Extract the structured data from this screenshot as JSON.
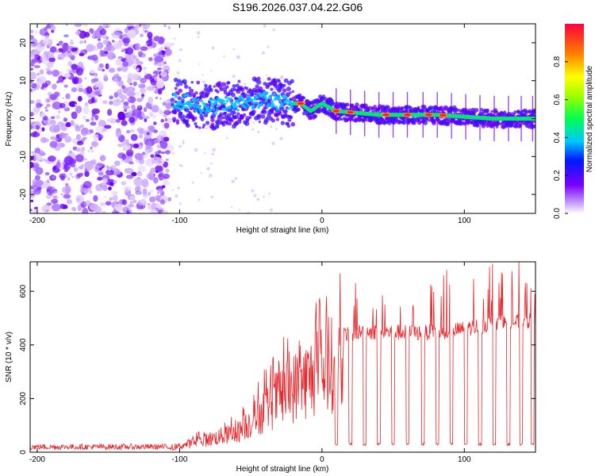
{
  "title": "S196.2026.037.04.22.G06",
  "chart_data": [
    {
      "type": "heatmap",
      "name": "spectrogram",
      "xlabel": "Height of straight line (km)",
      "ylabel": "Frequency (Hz)",
      "xlim": [
        -205,
        150
      ],
      "ylim": [
        -25,
        25
      ],
      "x_ticks": [
        -200,
        -100,
        0,
        100
      ],
      "y_ticks": [
        -20,
        -10,
        0,
        10,
        20
      ],
      "x_tick_labels": [
        "-200",
        "-100",
        "0",
        "100"
      ],
      "y_tick_labels": [
        "-20",
        "-10",
        "0",
        "10",
        "20"
      ],
      "colorbar": {
        "label": "Normalized spectral amplitude",
        "range": [
          0,
          1
        ],
        "ticks": [
          0.0,
          0.2,
          0.4,
          0.6,
          0.8
        ],
        "tick_labels": [
          "0.0",
          "0.2",
          "0.4",
          "0.6",
          "0.8"
        ]
      },
      "noise_region_x": [
        -205,
        -107
      ],
      "signal_band": [
        {
          "x": -105,
          "freq": 5
        },
        {
          "x": -80,
          "freq": 3
        },
        {
          "x": -60,
          "freq": 4
        },
        {
          "x": -40,
          "freq": 5
        },
        {
          "x": -25,
          "freq": 4
        },
        {
          "x": -15,
          "freq": 4
        },
        {
          "x": -8,
          "freq": 2
        },
        {
          "x": 0,
          "freq": 4
        },
        {
          "x": 10,
          "freq": 2
        },
        {
          "x": 40,
          "freq": 1
        },
        {
          "x": 80,
          "freq": 1
        },
        {
          "x": 120,
          "freq": 0
        },
        {
          "x": 150,
          "freq": 0
        }
      ],
      "peak_x": [
        -15,
        10,
        20,
        45,
        60,
        75,
        85
      ]
    },
    {
      "type": "line",
      "name": "snr",
      "xlabel": "Height of straight line (km)",
      "ylabel": "SNR (10 * v/v)",
      "xlim": [
        -205,
        150
      ],
      "ylim": [
        0,
        710
      ],
      "x_ticks": [
        -200,
        -100,
        0,
        100
      ],
      "y_ticks": [
        0,
        200,
        400,
        600
      ],
      "x_tick_labels": [
        "-200",
        "-100",
        "0",
        "100"
      ],
      "y_tick_labels": [
        "0",
        "200",
        "400",
        "600"
      ],
      "color": "#e8282c",
      "envelope": [
        {
          "x": -205,
          "y": 20
        },
        {
          "x": -105,
          "y": 20
        },
        {
          "x": -90,
          "y": 45
        },
        {
          "x": -60,
          "y": 90
        },
        {
          "x": -45,
          "y": 170
        },
        {
          "x": -30,
          "y": 260
        },
        {
          "x": -15,
          "y": 320
        },
        {
          "x": 0,
          "y": 380
        },
        {
          "x": 15,
          "y": 440
        },
        {
          "x": 30,
          "y": 450
        },
        {
          "x": 60,
          "y": 445
        },
        {
          "x": 90,
          "y": 450
        },
        {
          "x": 120,
          "y": 480
        },
        {
          "x": 150,
          "y": 490
        }
      ],
      "dropouts_x": [
        10,
        20,
        30,
        40,
        50,
        60,
        71,
        81,
        91,
        101,
        111,
        121,
        131,
        140,
        148
      ],
      "dropout_level": 25
    }
  ]
}
